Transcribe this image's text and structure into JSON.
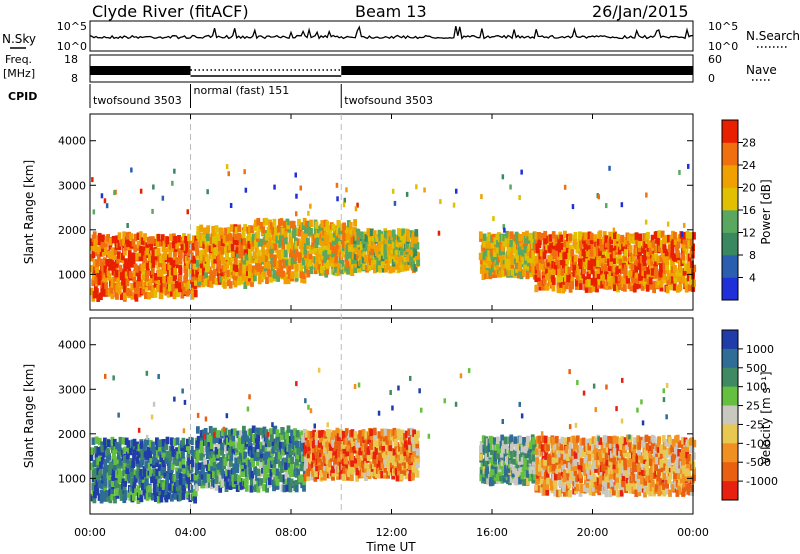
{
  "header": {
    "station": "Clyde River (fitACF)",
    "beam": "Beam 13",
    "date": "26/Jan/2015"
  },
  "top_panels": {
    "nsky_label": "N.Sky",
    "nsky_ticks": [
      "10^5",
      "10^0"
    ],
    "nsearch_label": "N.Search",
    "nsearch_ticks": [
      "10^5",
      "10^0"
    ],
    "freq_label_line1": "Freq.",
    "freq_label_line2": "[MHz]",
    "freq_ticks": [
      "18",
      "8"
    ],
    "nave_label": "Nave",
    "nave_ticks": [
      "60",
      "0"
    ],
    "cpid_label": "CPID",
    "cpid_segments": [
      {
        "label": "twofsound 3503",
        "start_hour": 0,
        "end_hour": 4
      },
      {
        "label": "normal (fast) 151",
        "start_hour": 4,
        "end_hour": 10
      },
      {
        "label": "twofsound 3503",
        "start_hour": 10,
        "end_hour": 24
      }
    ]
  },
  "colors": {
    "power_scale": [
      "#2030d8",
      "#2a5fb0",
      "#3a8860",
      "#5aa860",
      "#e0c000",
      "#f0a000",
      "#f07010",
      "#e82000"
    ],
    "velocity_scale": [
      "#203ca8",
      "#2f6d96",
      "#3f8a62",
      "#66c040",
      "#c8c8c0",
      "#e8c850",
      "#f09020",
      "#e86010",
      "#e82010"
    ]
  },
  "chart_data": [
    {
      "type": "heatmap",
      "quantity": "Power",
      "ylabel": "Slant Range [km]",
      "xlim": [
        0,
        24
      ],
      "ylim": [
        200,
        4600
      ],
      "y_ticks": [
        "1000",
        "2000",
        "3000",
        "4000"
      ],
      "colorbar_label": "Power [dB]",
      "colorbar_ticks": [
        "4",
        "8",
        "12",
        "16",
        "20",
        "24",
        "28"
      ],
      "colorbar_range": [
        0,
        32
      ],
      "bands": [
        {
          "start_hour": 0.0,
          "end_hour": 2.0,
          "min_km": 450,
          "max_km": 1900,
          "level": 0.85
        },
        {
          "start_hour": 2.0,
          "end_hour": 4.2,
          "min_km": 500,
          "max_km": 1850,
          "level": 0.8
        },
        {
          "start_hour": 4.2,
          "end_hour": 6.5,
          "min_km": 750,
          "max_km": 2050,
          "level": 0.7
        },
        {
          "start_hour": 6.5,
          "end_hour": 8.5,
          "min_km": 850,
          "max_km": 2200,
          "level": 0.65
        },
        {
          "start_hour": 8.5,
          "end_hour": 10.5,
          "min_km": 1000,
          "max_km": 2150,
          "level": 0.6
        },
        {
          "start_hour": 10.5,
          "end_hour": 13.0,
          "min_km": 1100,
          "max_km": 1950,
          "level": 0.55
        },
        {
          "start_hour": 15.5,
          "end_hour": 17.7,
          "min_km": 950,
          "max_km": 1900,
          "level": 0.6
        },
        {
          "start_hour": 17.7,
          "end_hour": 24.0,
          "min_km": 650,
          "max_km": 1900,
          "level": 0.8
        }
      ]
    },
    {
      "type": "heatmap",
      "quantity": "Velocity",
      "xlabel": "Time UT",
      "ylabel": "Slant Range [km]",
      "xlim": [
        0,
        24
      ],
      "ylim": [
        200,
        4600
      ],
      "x_ticks": [
        "00:00",
        "04:00",
        "08:00",
        "12:00",
        "16:00",
        "20:00",
        "00:00"
      ],
      "y_ticks": [
        "1000",
        "2000",
        "3000",
        "4000"
      ],
      "colorbar_label": "Velocity [m s⁻¹]",
      "colorbar_ticks": [
        "1000",
        "500",
        "100",
        "25",
        "-25",
        "-100",
        "-500",
        "-1000"
      ],
      "bands": [
        {
          "start_hour": 0.0,
          "end_hour": 4.2,
          "min_km": 500,
          "max_km": 1850,
          "level": 0.2
        },
        {
          "start_hour": 4.2,
          "end_hour": 8.5,
          "min_km": 750,
          "max_km": 2100,
          "level": 0.25
        },
        {
          "start_hour": 8.5,
          "end_hour": 13.0,
          "min_km": 1000,
          "max_km": 2050,
          "level": 0.75
        },
        {
          "start_hour": 15.5,
          "end_hour": 17.7,
          "min_km": 900,
          "max_km": 1900,
          "level": 0.35
        },
        {
          "start_hour": 17.7,
          "end_hour": 24.0,
          "min_km": 650,
          "max_km": 1900,
          "level": 0.7
        }
      ]
    }
  ]
}
